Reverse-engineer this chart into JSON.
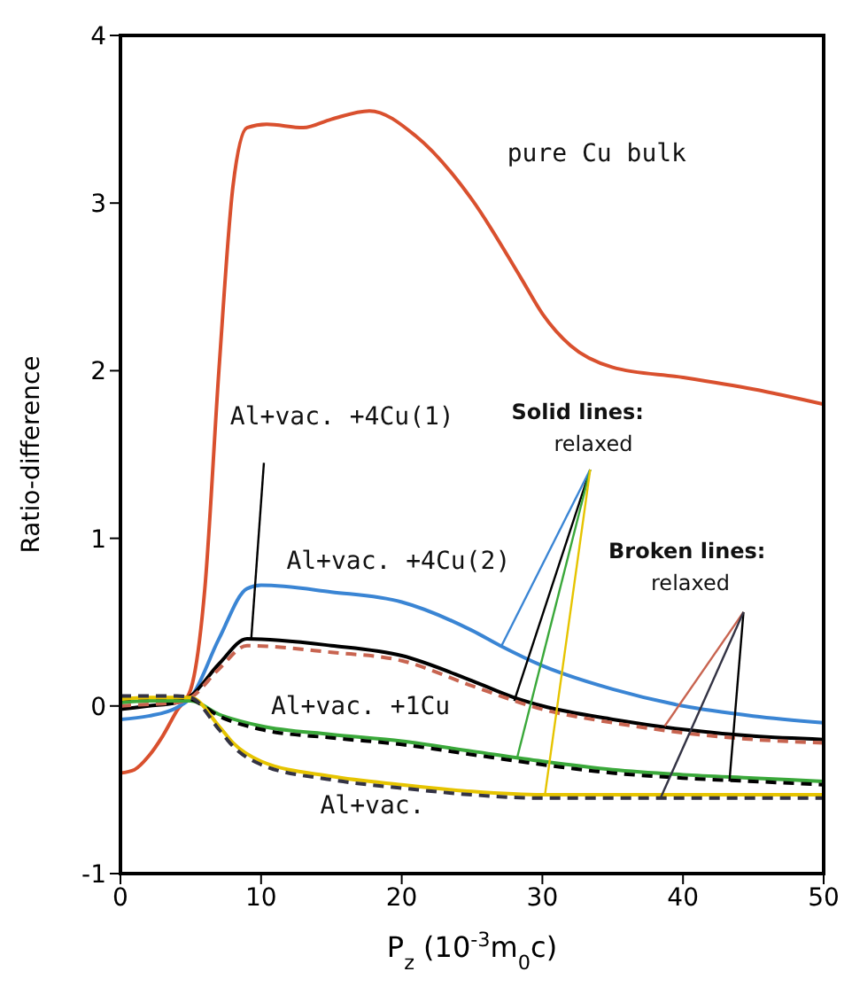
{
  "chart_data": {
    "type": "line",
    "xlabel": "P$_{z}$ (10$^{-3}$m$_{0}$c)",
    "ylabel": "Ratio-difference",
    "xlim": [
      0,
      50
    ],
    "ylim": [
      -1,
      4
    ],
    "xticks": [
      0,
      10,
      20,
      30,
      40,
      50
    ],
    "yticks": [
      -1,
      0,
      1,
      2,
      3,
      4
    ],
    "marker": "none",
    "series": [
      {
        "color": "#d9502e",
        "line_style": "solid",
        "x": [
          0,
          1,
          2,
          3,
          4,
          5,
          6,
          7,
          8,
          9,
          10.4,
          13,
          15,
          17.7,
          21,
          25,
          28.5,
          30,
          32,
          35,
          40,
          45,
          50
        ],
        "values": [
          -0.4,
          -0.38,
          -0.3,
          -0.18,
          -0.03,
          0.1,
          0.7,
          2.0,
          3.1,
          3.45,
          3.47,
          3.45,
          3.5,
          3.55,
          3.4,
          3.02,
          2.55,
          2.34,
          2.15,
          2.02,
          1.96,
          1.89,
          1.8
        ]
      },
      {
        "color": "#3a85d4",
        "line_style": "solid",
        "x": [
          0,
          2,
          4,
          5,
          7,
          9,
          10,
          15,
          20,
          25,
          27,
          30,
          35,
          40,
          45,
          50
        ],
        "values": [
          -0.08,
          -0.06,
          -0.01,
          0.05,
          0.4,
          0.7,
          0.72,
          0.68,
          0.62,
          0.45,
          0.36,
          0.24,
          0.1,
          0.0,
          -0.06,
          -0.1
        ]
      },
      {
        "color": "#000000",
        "line_style": "solid",
        "x": [
          0,
          2,
          4,
          5,
          7,
          9,
          15,
          20,
          25,
          28,
          30,
          35,
          40,
          45,
          50
        ],
        "values": [
          -0.02,
          0.0,
          0.02,
          0.06,
          0.25,
          0.4,
          0.36,
          0.3,
          0.15,
          0.05,
          0.0,
          -0.08,
          -0.14,
          -0.18,
          -0.2
        ]
      },
      {
        "color": "#c86450",
        "line_style": "dashed",
        "x": [
          0,
          2,
          4,
          5,
          7,
          9,
          15,
          20,
          25,
          30,
          35,
          40,
          45,
          50
        ],
        "values": [
          0.0,
          0.01,
          0.02,
          0.05,
          0.22,
          0.36,
          0.32,
          0.27,
          0.12,
          -0.02,
          -0.1,
          -0.16,
          -0.2,
          -0.22
        ]
      },
      {
        "color": "#3aa83a",
        "line_style": "solid",
        "x": [
          0,
          2,
          4,
          5,
          7,
          10,
          15,
          20,
          25,
          30,
          35,
          40,
          45,
          50
        ],
        "values": [
          0.02,
          0.03,
          0.03,
          0.03,
          -0.05,
          -0.12,
          -0.17,
          -0.21,
          -0.27,
          -0.33,
          -0.38,
          -0.41,
          -0.43,
          -0.45
        ]
      },
      {
        "color": "#000000",
        "line_style": "dashed",
        "x": [
          0,
          2,
          4,
          5,
          7,
          10,
          15,
          20,
          25,
          30,
          35,
          40,
          45,
          50
        ],
        "values": [
          0.04,
          0.05,
          0.05,
          0.04,
          -0.06,
          -0.14,
          -0.19,
          -0.23,
          -0.29,
          -0.35,
          -0.4,
          -0.43,
          -0.45,
          -0.47
        ]
      },
      {
        "color": "#e6c400",
        "line_style": "solid",
        "x": [
          0,
          2,
          4,
          5,
          7,
          8,
          10,
          15,
          20,
          25,
          30,
          40,
          50
        ],
        "values": [
          0.04,
          0.05,
          0.05,
          0.05,
          -0.12,
          -0.22,
          -0.33,
          -0.42,
          -0.47,
          -0.51,
          -0.53,
          -0.53,
          -0.53
        ]
      },
      {
        "color": "#333344",
        "line_style": "dashed",
        "x": [
          0,
          2,
          4,
          5,
          7,
          8,
          10,
          15,
          20,
          25,
          30,
          40,
          50
        ],
        "values": [
          0.06,
          0.06,
          0.06,
          0.05,
          -0.14,
          -0.24,
          -0.35,
          -0.44,
          -0.49,
          -0.53,
          -0.55,
          -0.55,
          -0.55
        ]
      }
    ],
    "annotations": [
      "pure Cu bulk",
      {
        "text": "Al+vac. +4Cu(1)",
        "x": 9.3,
        "y": 0.4
      },
      "Al+vac. +4Cu(2)",
      "Al+vac. +1Cu",
      "Al+vac.",
      {
        "text": "Solid lines:\nrelaxed",
        "x": 28.0,
        "y": 0.03
      },
      {
        "text": "Broken lines:\nrelaxed",
        "x": 43.3,
        "y": -0.45
      }
    ]
  }
}
